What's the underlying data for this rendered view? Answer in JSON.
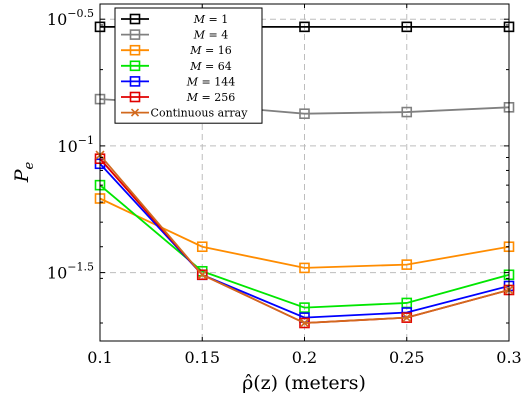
{
  "chart_data": {
    "type": "line",
    "xlabel": "ρ̂(z) (meters)",
    "ylabel": "Pe",
    "ylabel_main": "P",
    "ylabel_sub": "e",
    "x": [
      0.1,
      0.15,
      0.2,
      0.25,
      0.3
    ],
    "xlim": [
      0.1,
      0.3
    ],
    "ylim_log10": [
      -1.77,
      -0.44
    ],
    "y_scale": "log",
    "xtick_labels": [
      "0.1",
      "0.15",
      "0.2",
      "0.25",
      "0.3"
    ],
    "yticks": [
      {
        "base": "10",
        "exp": "−0.5",
        "log10": -0.5
      },
      {
        "base": "10",
        "exp": "−1",
        "log10": -1.0
      },
      {
        "base": "10",
        "exp": "−1.5",
        "log10": -1.5
      }
    ],
    "grid": true,
    "legend_position": "top-left",
    "series": [
      {
        "name": "M = 1",
        "name_var": "M",
        "name_val": " = 1",
        "color": "#000000",
        "marker": "square",
        "values": [
          0.295,
          0.295,
          0.295,
          0.295,
          0.295
        ]
      },
      {
        "name": "M = 4",
        "name_var": "M",
        "name_val": " = 4",
        "color": "#808080",
        "marker": "square",
        "values": [
          0.153,
          0.145,
          0.134,
          0.136,
          0.142
        ]
      },
      {
        "name": "M = 16",
        "name_var": "M",
        "name_val": " = 16",
        "color": "#ff8c00",
        "marker": "square",
        "values": [
          0.062,
          0.04,
          0.033,
          0.034,
          0.04
        ]
      },
      {
        "name": "M = 64",
        "name_var": "M",
        "name_val": " = 64",
        "color": "#00e600",
        "marker": "square",
        "values": [
          0.07,
          0.032,
          0.023,
          0.024,
          0.031
        ]
      },
      {
        "name": "M = 144",
        "name_var": "M",
        "name_val": " = 144",
        "color": "#0000ff",
        "marker": "square",
        "values": [
          0.085,
          0.031,
          0.021,
          0.022,
          0.028
        ]
      },
      {
        "name": "M = 256",
        "name_var": "M",
        "name_val": " = 256",
        "color": "#e00000",
        "marker": "square",
        "values": [
          0.089,
          0.031,
          0.02,
          0.021,
          0.027
        ]
      },
      {
        "name": "Continuous array",
        "name_var": "",
        "name_val": "Continuous array",
        "color": "#d2691e",
        "marker": "x",
        "values": [
          0.092,
          0.031,
          0.02,
          0.021,
          0.027
        ]
      }
    ]
  }
}
